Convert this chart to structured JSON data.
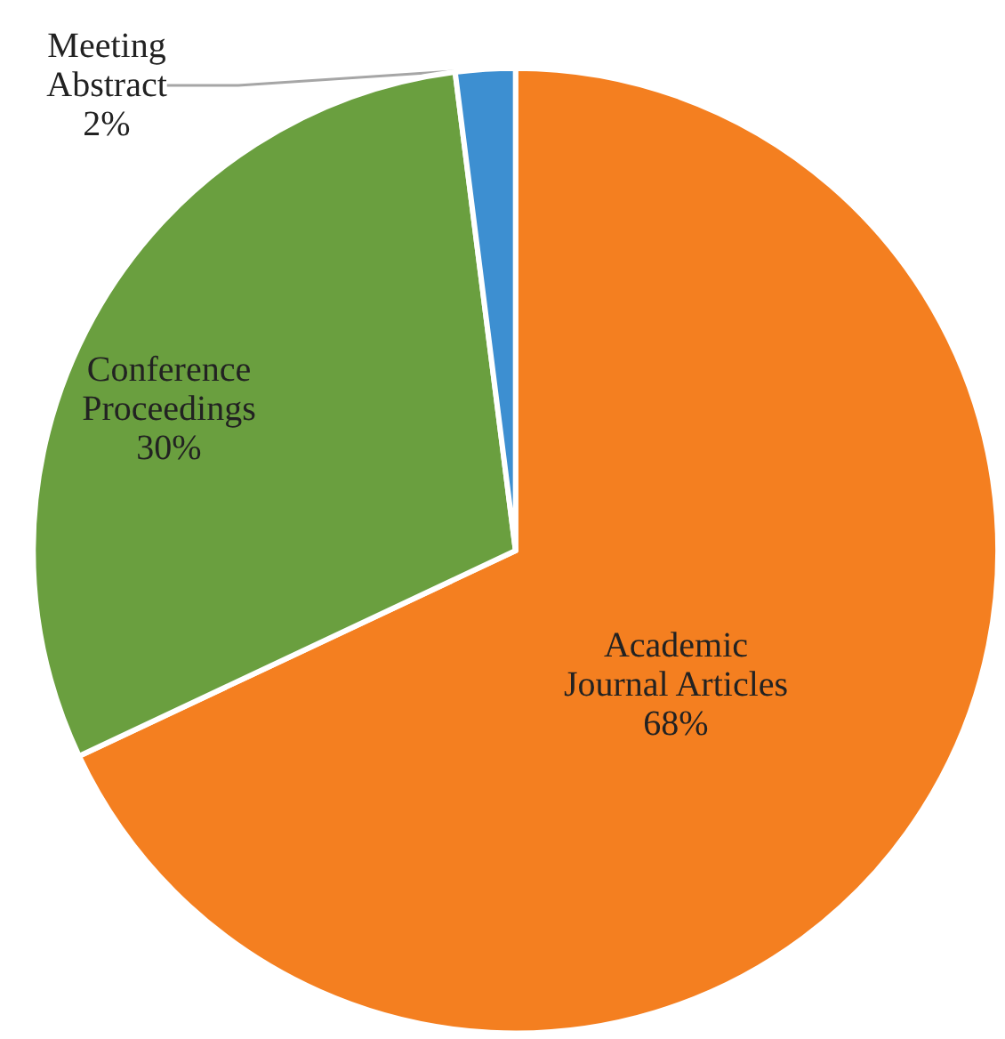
{
  "chart_data": {
    "type": "pie",
    "categories": [
      "Academic Journal Articles",
      "Conference Proceedings",
      "Meeting Abstract"
    ],
    "values": [
      68,
      30,
      2
    ],
    "colors": [
      "#f47f20",
      "#6a9f3f",
      "#3d8fd1"
    ],
    "value_labels": [
      "68%",
      "30%",
      "2%"
    ],
    "legend": false
  }
}
